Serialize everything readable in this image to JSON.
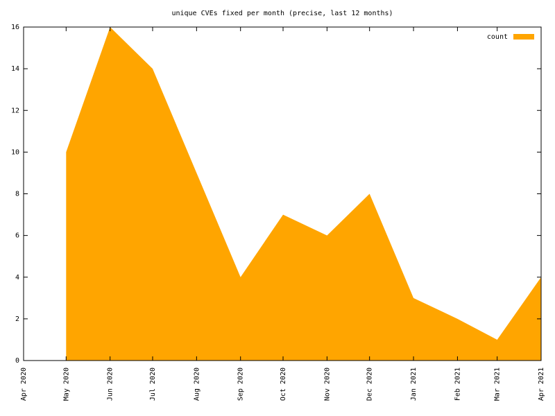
{
  "chart_data": {
    "type": "area",
    "title": "unique CVEs fixed per month (precise, last 12 months)",
    "x": [
      "2020-05",
      "2020-06",
      "2020-07",
      "2020-08",
      "2020-09",
      "2020-10",
      "2020-11",
      "2020-12",
      "2021-01",
      "2021-02",
      "2021-03",
      "2021-04"
    ],
    "series": [
      {
        "name": "count",
        "color": "#ffa500",
        "values": [
          10,
          16,
          14,
          9,
          4,
          7,
          6,
          8,
          3,
          2,
          1,
          4
        ]
      }
    ],
    "xlim": [
      "2020-04",
      "2021-04"
    ],
    "xticks": [
      {
        "value": "2020-04",
        "label": "Apr 2020"
      },
      {
        "value": "2020-05",
        "label": "May 2020"
      },
      {
        "value": "2020-06",
        "label": "Jun 2020"
      },
      {
        "value": "2020-07",
        "label": "Jul 2020"
      },
      {
        "value": "2020-08",
        "label": "Aug 2020"
      },
      {
        "value": "2020-09",
        "label": "Sep 2020"
      },
      {
        "value": "2020-10",
        "label": "Oct 2020"
      },
      {
        "value": "2020-11",
        "label": "Nov 2020"
      },
      {
        "value": "2020-12",
        "label": "Dec 2020"
      },
      {
        "value": "2021-01",
        "label": "Jan 2021"
      },
      {
        "value": "2021-02",
        "label": "Feb 2021"
      },
      {
        "value": "2021-03",
        "label": "Mar 2021"
      },
      {
        "value": "2021-04",
        "label": "Apr 2021"
      }
    ],
    "ylim": [
      0,
      16
    ],
    "yticks": [
      0,
      2,
      4,
      6,
      8,
      10,
      12,
      14,
      16
    ],
    "legend": "top-right",
    "grid": false
  }
}
